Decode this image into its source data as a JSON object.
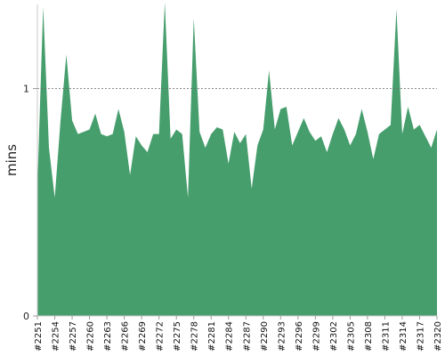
{
  "chart_data": {
    "type": "area",
    "ylabel": "mins",
    "xlabel": "",
    "title": "",
    "ylim": [
      0,
      1.37
    ],
    "yticks": [
      0,
      1
    ],
    "reference_line": 1,
    "grid": false,
    "x_tick_labels": [
      "#2251",
      "#2254",
      "#2257",
      "#2260",
      "#2263",
      "#2266",
      "#2269",
      "#2272",
      "#2275",
      "#2278",
      "#2281",
      "#2284",
      "#2287",
      "#2290",
      "#2293",
      "#2296",
      "#2299",
      "#2302",
      "#2305",
      "#2308",
      "#2311",
      "#2314",
      "#2317",
      "#2320"
    ],
    "x": [
      "#2251",
      "#2252",
      "#2253",
      "#2254",
      "#2255",
      "#2256",
      "#2257",
      "#2258",
      "#2259",
      "#2260",
      "#2261",
      "#2262",
      "#2263",
      "#2264",
      "#2265",
      "#2266",
      "#2267",
      "#2268",
      "#2269",
      "#2270",
      "#2271",
      "#2272",
      "#2273",
      "#2274",
      "#2275",
      "#2276",
      "#2277",
      "#2278",
      "#2279",
      "#2280",
      "#2281",
      "#2282",
      "#2283",
      "#2284",
      "#2285",
      "#2286",
      "#2287",
      "#2288",
      "#2289",
      "#2290",
      "#2291",
      "#2292",
      "#2293",
      "#2294",
      "#2295",
      "#2296",
      "#2297",
      "#2298",
      "#2299",
      "#2300",
      "#2301",
      "#2302",
      "#2303",
      "#2304",
      "#2305",
      "#2306",
      "#2307",
      "#2308",
      "#2309",
      "#2310",
      "#2311",
      "#2312",
      "#2313",
      "#2314",
      "#2315",
      "#2316",
      "#2317",
      "#2318",
      "#2319",
      "#2320"
    ],
    "series": [
      {
        "name": "",
        "color": "#469e6d",
        "values": [
          0.57,
          1.36,
          0.74,
          0.52,
          0.86,
          1.15,
          0.86,
          0.8,
          0.81,
          0.82,
          0.89,
          0.8,
          0.79,
          0.8,
          0.91,
          0.81,
          0.62,
          0.79,
          0.75,
          0.72,
          0.8,
          0.8,
          1.38,
          0.78,
          0.82,
          0.8,
          0.52,
          1.31,
          0.81,
          0.74,
          0.8,
          0.83,
          0.82,
          0.67,
          0.81,
          0.76,
          0.8,
          0.56,
          0.75,
          0.82,
          1.08,
          0.82,
          0.91,
          0.92,
          0.75,
          0.81,
          0.87,
          0.81,
          0.77,
          0.79,
          0.72,
          0.8,
          0.87,
          0.82,
          0.75,
          0.8,
          0.91,
          0.81,
          0.69,
          0.8,
          0.82,
          0.84,
          1.35,
          0.8,
          0.92,
          0.82,
          0.84,
          0.79,
          0.74,
          0.82
        ]
      }
    ]
  }
}
